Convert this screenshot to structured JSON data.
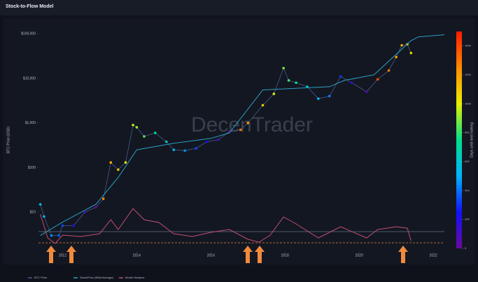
{
  "chart_data": {
    "type": "scatter",
    "title": "Stock-to-Flow Model",
    "watermark": "DecenTrader",
    "y_label": "BTC Price (USD)",
    "log_scale": true,
    "xlim": [
      2011.35,
      2022.3
    ],
    "xticks": [
      2012,
      2014,
      2016,
      2018,
      2020,
      2022
    ],
    "ylim": [
      1,
      150000
    ],
    "yticks": [
      {
        "value": 10,
        "label": "$10"
      },
      {
        "value": 100,
        "label": "$100"
      },
      {
        "value": 1000,
        "label": "$1,000"
      },
      {
        "value": 10000,
        "label": "$10,000"
      },
      {
        "value": 100000,
        "label": "$100,000"
      }
    ],
    "y2lim": [
      -1.5,
      2
    ],
    "colorbar": {
      "label": "Days until next halving",
      "lim": [
        0,
        1500
      ],
      "ticks": [
        0,
        200,
        400,
        600,
        800,
        1000,
        1200,
        1400
      ],
      "colormap": [
        "#6a0a9e",
        "#1010ff",
        "#00b4ff",
        "#00e08a",
        "#e8f000",
        "#ff8a00",
        "#ff1a00"
      ]
    },
    "series": [
      {
        "name": "BTC Price",
        "color": "#4a5a8a",
        "x": [
          2011.4,
          2011.5,
          2011.7,
          2011.9,
          2012.0,
          2012.3,
          2012.6,
          2012.9,
          2013.1,
          2013.3,
          2013.5,
          2013.7,
          2013.9,
          2014.0,
          2014.2,
          2014.5,
          2014.8,
          2015.0,
          2015.3,
          2015.6,
          2015.9,
          2016.2,
          2016.5,
          2016.8,
          2017.0,
          2017.4,
          2017.7,
          2017.96,
          2018.1,
          2018.3,
          2018.6,
          2018.9,
          2019.2,
          2019.5,
          2019.8,
          2020.2,
          2020.5,
          2020.8,
          2021.0,
          2021.15,
          2021.3,
          2021.4
        ],
        "values": [
          15,
          8,
          3,
          3,
          5,
          5,
          10,
          13,
          20,
          130,
          90,
          130,
          900,
          800,
          500,
          600,
          380,
          250,
          240,
          270,
          380,
          420,
          650,
          700,
          1000,
          2500,
          4500,
          17000,
          9000,
          8000,
          6500,
          3500,
          4000,
          11000,
          8000,
          5000,
          9500,
          15000,
          30000,
          55000,
          58000,
          37000
        ],
        "color_values": [
          551,
          515,
          442,
          369,
          332,
          223,
          113,
          4,
          1248,
          1175,
          1102,
          1029,
          956,
          920,
          847,
          737,
          628,
          555,
          445,
          336,
          226,
          117,
          7,
          1299,
          1226,
          1080,
          971,
          876,
          825,
          752,
          642,
          533,
          423,
          314,
          204,
          58,
          1387,
          1278,
          1205,
          1150,
          1095,
          1058
        ]
      },
      {
        "name": "Stock/Flow (365d Average)",
        "color": "#2a9fc0",
        "x": [
          2011.4,
          2012.0,
          2012.9,
          2013.5,
          2014.0,
          2015.0,
          2016.0,
          2016.5,
          2017.4,
          2019.2,
          2019.6,
          2020.4,
          2021.4,
          2021.6,
          2022.3
        ],
        "values": [
          3,
          6,
          15,
          60,
          250,
          350,
          450,
          600,
          5500,
          6500,
          9000,
          12000,
          70000,
          85000,
          95000
        ]
      },
      {
        "name": "Model Variance",
        "color": "#c0506e",
        "axis": "y2",
        "x": [
          2011.4,
          2011.6,
          2011.8,
          2012.0,
          2012.5,
          2013.0,
          2013.3,
          2013.5,
          2013.9,
          2014.2,
          2014.6,
          2015.0,
          2015.5,
          2016.0,
          2016.5,
          2017.0,
          2017.3,
          2017.6,
          2017.96,
          2018.3,
          2018.9,
          2019.5,
          2020.2,
          2020.5,
          2021.0,
          2021.3,
          2021.4
        ],
        "values": [
          1.2,
          -0.5,
          -0.9,
          -0.3,
          -0.4,
          -0.2,
          0.8,
          0.1,
          1.6,
          0.8,
          0.6,
          -0.2,
          -0.4,
          -0.1,
          0.1,
          -0.6,
          -0.8,
          -0.3,
          1.0,
          0.5,
          -0.5,
          0.3,
          -0.5,
          0.1,
          0.3,
          0.2,
          -0.7
        ]
      }
    ]
  }
}
